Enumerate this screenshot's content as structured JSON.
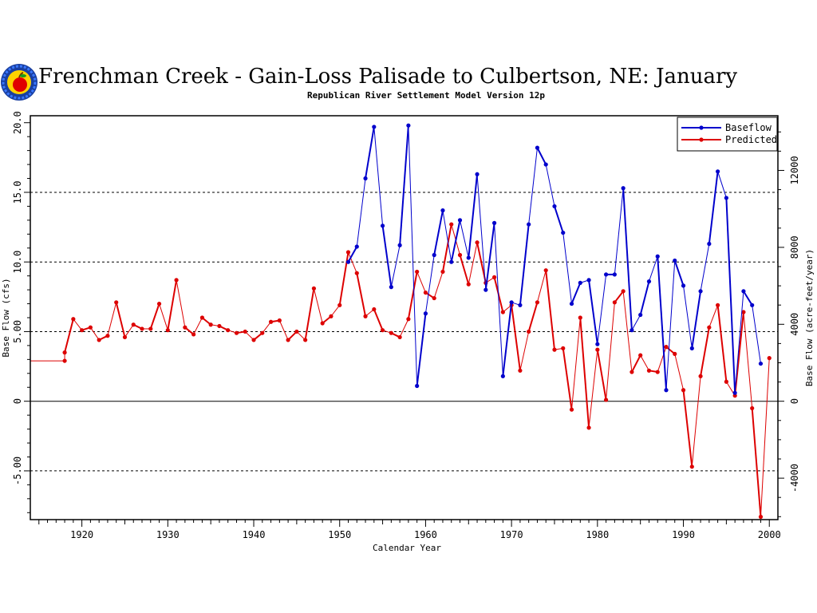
{
  "chart_data": {
    "type": "line",
    "title": "Frenchman Creek - Gain-Loss Palisade to Culbertson, NE: January",
    "subtitle": "Republican River Settlement Model Version 12p",
    "xlabel": "Calendar Year",
    "ylabel": "Base Flow (cfs)",
    "ylabel_right": "Base Flow (acre-feet/year)",
    "xlim": [
      1914,
      2001
    ],
    "ylim": [
      -8.5,
      20.5
    ],
    "x_ticks": [
      "1920",
      "1930",
      "1940",
      "1950",
      "1960",
      "1970",
      "1980",
      "1990",
      "2000"
    ],
    "y_ticks": [
      "20.0",
      "15.0",
      "10.0",
      "5.00",
      "0",
      "-5.00"
    ],
    "y_ticks_right": [
      "12000",
      "8000",
      "4000",
      "0",
      "-4000"
    ],
    "grid_y": [
      15,
      10,
      5,
      -5
    ],
    "legend_position": "top-right",
    "legend": [
      "Baseflow",
      "Predicted"
    ],
    "series": [
      {
        "name": "Baseflow",
        "color": "#0000cc",
        "x": [
          1951,
          1952,
          1953,
          1954,
          1955,
          1956,
          1957,
          1958,
          1959,
          1960,
          1961,
          1962,
          1963,
          1964,
          1965,
          1966,
          1967,
          1968,
          1969,
          1970,
          1971,
          1972,
          1973,
          1974,
          1975,
          1976,
          1977,
          1978,
          1979,
          1980,
          1981,
          1982,
          1983,
          1984,
          1985,
          1986,
          1987,
          1988,
          1989,
          1990,
          1991,
          1992,
          1993,
          1994,
          1995,
          1996,
          1997,
          1998,
          1999
        ],
        "y": [
          10.0,
          11.1,
          16.0,
          19.7,
          12.6,
          8.2,
          11.2,
          19.8,
          1.1,
          6.3,
          10.5,
          13.7,
          10.0,
          13.0,
          10.3,
          16.3,
          8.0,
          12.8,
          1.8,
          7.1,
          6.9,
          12.7,
          18.2,
          17.0,
          14.0,
          12.1,
          7.0,
          8.5,
          8.7,
          4.1,
          9.1,
          9.1,
          15.3,
          5.1,
          6.2,
          8.6,
          10.4,
          0.8,
          10.1,
          8.3,
          3.8,
          7.9,
          11.3,
          16.5,
          14.6,
          0.6,
          7.9,
          6.9,
          2.7
        ]
      },
      {
        "name": "Predicted",
        "color": "#dd0000",
        "x": [
          1914,
          1918,
          1918,
          1919,
          1920,
          1921,
          1922,
          1923,
          1924,
          1925,
          1926,
          1927,
          1928,
          1929,
          1930,
          1931,
          1932,
          1933,
          1934,
          1935,
          1936,
          1937,
          1938,
          1939,
          1940,
          1941,
          1942,
          1943,
          1944,
          1945,
          1946,
          1947,
          1948,
          1949,
          1950,
          1951,
          1952,
          1953,
          1954,
          1955,
          1956,
          1957,
          1958,
          1959,
          1960,
          1961,
          1962,
          1963,
          1964,
          1965,
          1966,
          1967,
          1968,
          1969,
          1970,
          1971,
          1972,
          1973,
          1974,
          1975,
          1976,
          1977,
          1978,
          1979,
          1980,
          1981,
          1982,
          1983,
          1984,
          1985,
          1986,
          1987,
          1988,
          1989,
          1990,
          1991,
          1992,
          1993,
          1994,
          1995,
          1996,
          1997,
          1998,
          1999,
          2000
        ],
        "y": [
          2.9,
          2.9,
          3.5,
          5.9,
          5.1,
          5.3,
          4.4,
          4.7,
          7.1,
          4.6,
          5.5,
          5.2,
          5.2,
          7.0,
          5.1,
          8.7,
          5.3,
          4.8,
          6.0,
          5.5,
          5.4,
          5.1,
          4.9,
          5.0,
          4.4,
          4.9,
          5.7,
          5.8,
          4.4,
          5.0,
          4.4,
          8.1,
          5.6,
          6.1,
          6.9,
          10.7,
          9.2,
          6.1,
          6.6,
          5.1,
          4.9,
          4.6,
          5.9,
          9.3,
          7.8,
          7.4,
          9.3,
          12.7,
          10.5,
          8.4,
          11.4,
          8.5,
          8.9,
          6.4,
          6.9,
          2.2,
          5.0,
          7.1,
          9.4,
          3.7,
          3.8,
          -0.6,
          6.0,
          -1.9,
          3.7,
          0.1,
          7.1,
          7.9,
          2.1,
          3.3,
          2.2,
          2.1,
          3.9,
          3.4,
          0.8,
          -4.7,
          1.8,
          5.3,
          6.9,
          1.4,
          0.4,
          6.4,
          -0.5,
          -8.3,
          3.1
        ]
      }
    ]
  }
}
